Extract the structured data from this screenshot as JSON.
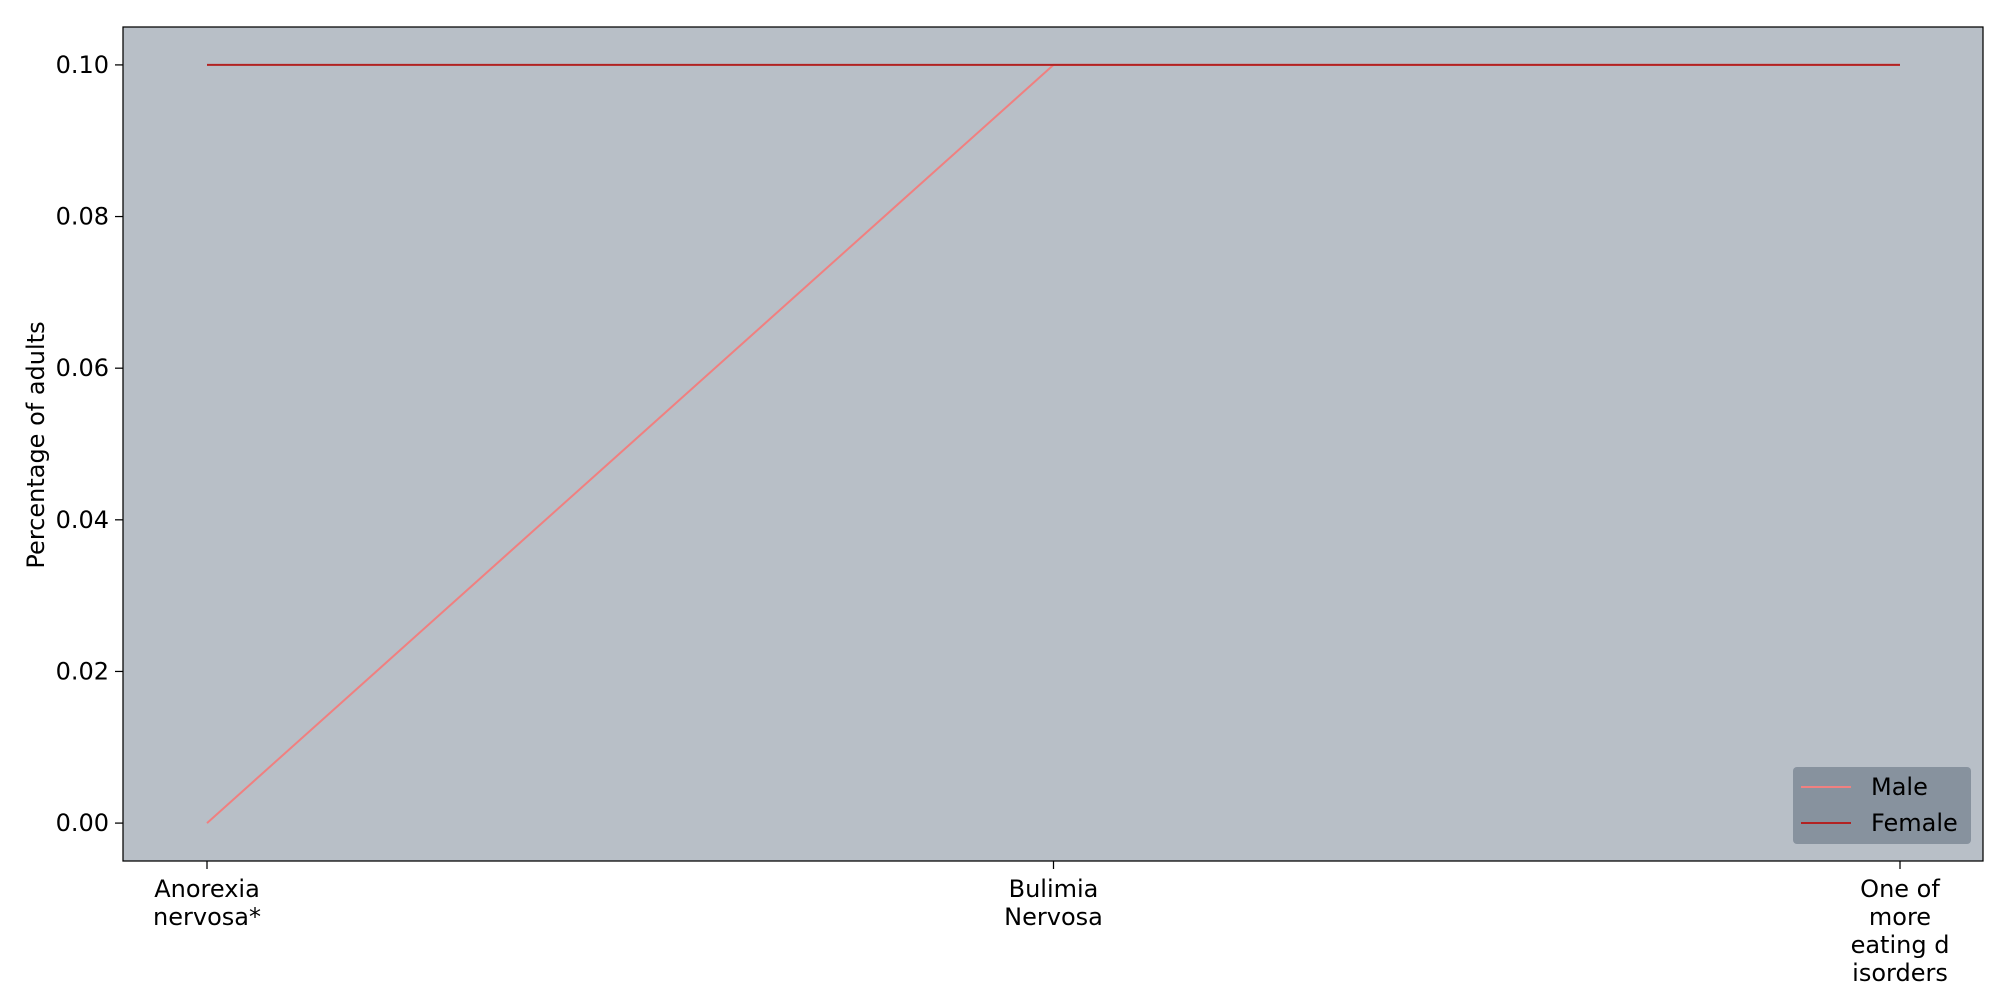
{
  "chart_data": {
    "type": "line",
    "categories": [
      [
        "Anorexia",
        "nervosa*"
      ],
      [
        "Bulimia",
        "Nervosa"
      ],
      [
        "One of",
        "more",
        "eating d",
        "isorders"
      ]
    ],
    "series": [
      {
        "name": "Male",
        "values": [
          0.0,
          0.1,
          0.1
        ],
        "color": "#f08080"
      },
      {
        "name": "Female",
        "values": [
          0.1,
          0.1,
          0.1
        ],
        "color": "#b22222"
      }
    ],
    "title": "",
    "xlabel": "",
    "ylabel": "Percentage of adults",
    "ylim": [
      -0.005,
      0.105
    ],
    "yticks": [
      "0.00",
      "0.02",
      "0.04",
      "0.06",
      "0.08",
      "0.10"
    ],
    "grid": false,
    "legend_position": "bottom-right",
    "background_color": "#b8bfc7",
    "legend_background": "#848f9c"
  }
}
